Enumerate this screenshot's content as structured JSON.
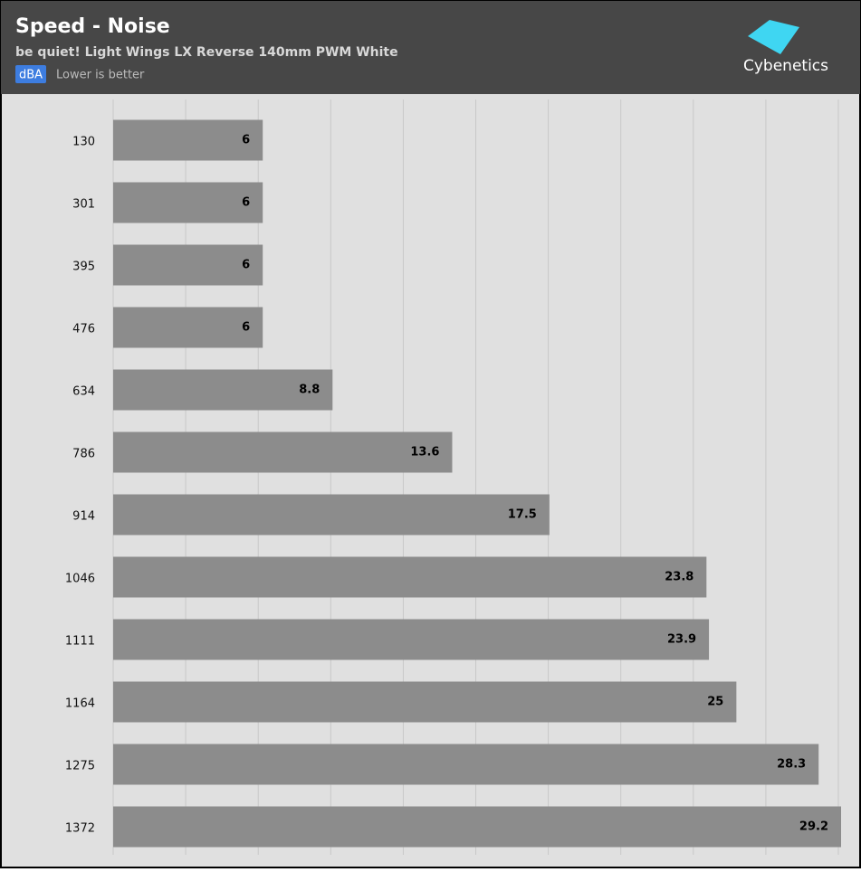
{
  "chart_data": {
    "type": "bar",
    "orientation": "horizontal",
    "title": "Speed - Noise",
    "subtitle": "be quiet! Light Wings LX Reverse 140mm PWM White",
    "unit": "dBA",
    "note": "Lower is better",
    "logo": "Cybenetics",
    "categories": [
      "130",
      "301",
      "395",
      "476",
      "634",
      "786",
      "914",
      "1046",
      "1111",
      "1164",
      "1275",
      "1372"
    ],
    "values": [
      6,
      6,
      6,
      6,
      8.8,
      13.6,
      17.5,
      23.8,
      23.9,
      25,
      28.3,
      29.2
    ],
    "color": "#8c8c8c",
    "xlim": [
      0,
      29.2
    ]
  }
}
